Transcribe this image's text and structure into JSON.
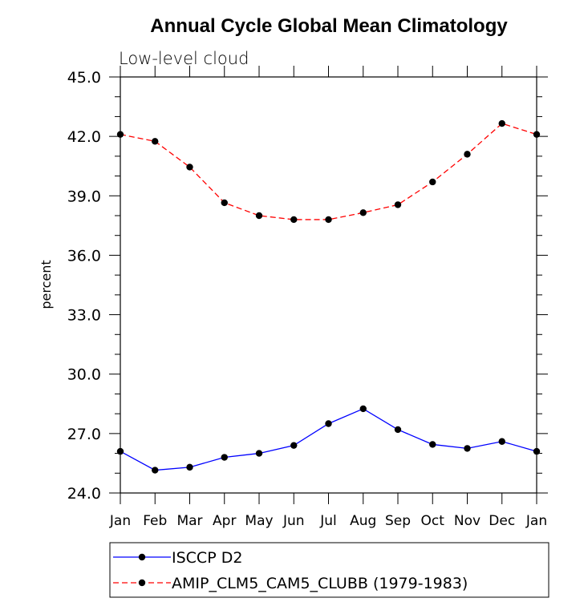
{
  "chart_data": {
    "type": "line",
    "title": "Annual Cycle Global Mean Climatology",
    "subtitle": "Low-level cloud",
    "xlabel": "",
    "ylabel": "percent",
    "ylim": [
      24.0,
      45.0
    ],
    "yticks": [
      "24.0",
      "27.0",
      "30.0",
      "33.0",
      "36.0",
      "39.0",
      "42.0",
      "45.0"
    ],
    "categories": [
      "Jan",
      "Feb",
      "Mar",
      "Apr",
      "May",
      "Jun",
      "Jul",
      "Aug",
      "Sep",
      "Oct",
      "Nov",
      "Dec",
      "Jan"
    ],
    "grid": false,
    "legend_position": "bottom",
    "series": [
      {
        "name": "ISCCP D2",
        "values": [
          26.1,
          25.15,
          25.3,
          25.8,
          26.0,
          26.4,
          27.5,
          28.25,
          27.2,
          26.45,
          26.25,
          26.6,
          26.1
        ],
        "color": "#0000ff",
        "style": "solid",
        "marker": "dot"
      },
      {
        "name": "AMIP_CLM5_CAM5_CLUBB (1979-1983)",
        "values": [
          42.1,
          41.75,
          40.45,
          38.65,
          38.0,
          37.8,
          37.8,
          38.15,
          38.55,
          39.7,
          41.1,
          42.65,
          42.1
        ],
        "color": "#ff0000",
        "style": "dashed",
        "marker": "dot"
      }
    ]
  }
}
